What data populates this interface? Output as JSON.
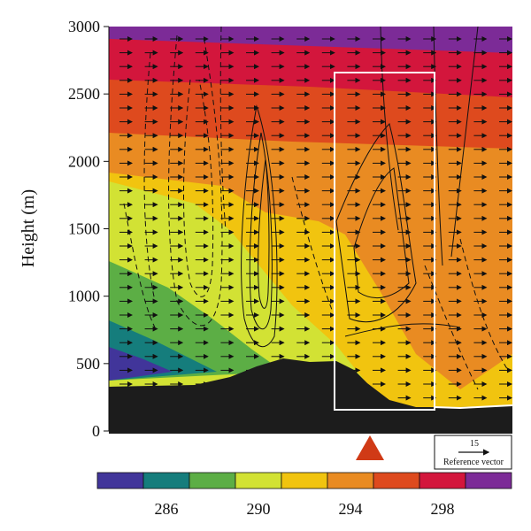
{
  "chart_data": {
    "type": "heatmap",
    "ylabel": "Height (m)",
    "ylim": [
      0,
      3000
    ],
    "yticks": [
      0,
      500,
      1000,
      1500,
      2000,
      2500,
      3000
    ],
    "grid": false,
    "colorbar": {
      "ticks": [
        "286",
        "290",
        "294",
        "298"
      ],
      "levels": [
        284,
        286,
        288,
        290,
        292,
        294,
        296,
        298,
        300,
        302
      ],
      "colors": [
        "#41359a",
        "#157d7c",
        "#5cae45",
        "#d2e234",
        "#f1c40f",
        "#e98b22",
        "#de4a1e",
        "#d3163c",
        "#7c2b97"
      ]
    },
    "terrain_color": "#1c1c1c",
    "vector_reference": {
      "value": "15",
      "label": "Reference vector"
    },
    "marker": {
      "shape": "triangle",
      "color": "#d03a16"
    },
    "highlight_box": {
      "color": "#ffffff"
    }
  }
}
